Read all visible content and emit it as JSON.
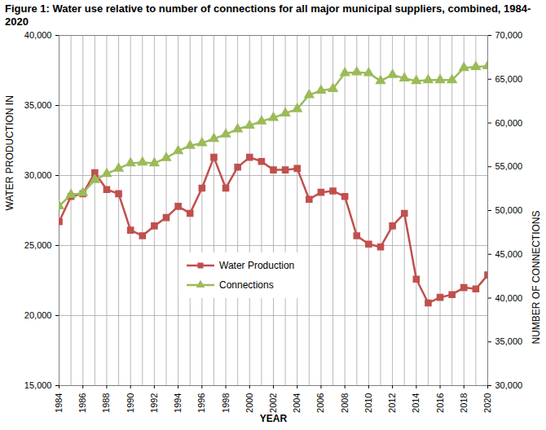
{
  "chart_data": {
    "type": "line",
    "title": "Figure 1: Water use relative to number of connections for all major municipal suppliers, combined, 1984-2020",
    "x_label": "YEAR",
    "y_label": "WATER PRODUCTION IN",
    "y2_label": "NUMBER OF CONNECTIONS",
    "x": [
      1984,
      1985,
      1986,
      1987,
      1988,
      1989,
      1990,
      1991,
      1992,
      1993,
      1994,
      1995,
      1996,
      1997,
      1998,
      1999,
      2000,
      2001,
      2002,
      2003,
      2004,
      2005,
      2006,
      2007,
      2008,
      2009,
      2010,
      2011,
      2012,
      2013,
      2014,
      2015,
      2016,
      2017,
      2018,
      2019,
      2020
    ],
    "series": [
      {
        "name": "Water Production",
        "color": "#c0504d",
        "marker": "square",
        "values": [
          26700,
          28500,
          28700,
          30200,
          29000,
          28700,
          26100,
          25700,
          26400,
          27000,
          27800,
          27300,
          29100,
          31300,
          29100,
          30600,
          31300,
          31000,
          30400,
          30400,
          30500,
          28300,
          28800,
          28900,
          28500,
          25700,
          25100,
          24900,
          26400,
          27300,
          22600,
          20900,
          21300,
          21500,
          22000,
          21900,
          22900
        ]
      },
      {
        "name": "Connections",
        "color": "#9bbb59",
        "marker": "triangle",
        "axis": "y2",
        "values": [
          50500,
          51800,
          52000,
          53500,
          54200,
          54800,
          55400,
          55500,
          55400,
          56000,
          56800,
          57400,
          57700,
          58200,
          58700,
          59300,
          59700,
          60200,
          60600,
          61100,
          61600,
          63200,
          63700,
          63900,
          65700,
          65800,
          65700,
          64800,
          65500,
          65100,
          64800,
          64900,
          64900,
          64900,
          66300,
          66400,
          66500
        ]
      }
    ],
    "xlim": [
      1984,
      2020
    ],
    "xticks": [
      1984,
      1986,
      1988,
      1990,
      1992,
      1994,
      1996,
      1998,
      2000,
      2002,
      2004,
      2006,
      2008,
      2010,
      2012,
      2014,
      2016,
      2018,
      2020
    ],
    "ylim": [
      15000,
      40000
    ],
    "yticks": [
      {
        "value": 15000,
        "label": "15,000"
      },
      {
        "value": 20000,
        "label": "20,000"
      },
      {
        "value": 25000,
        "label": "25,000"
      },
      {
        "value": 30000,
        "label": "30,000"
      },
      {
        "value": 35000,
        "label": "35,000"
      },
      {
        "value": 40000,
        "label": "40,000"
      }
    ],
    "y2lim": [
      30000,
      70000
    ],
    "y2ticks": [
      {
        "value": 30000,
        "label": "30,000"
      },
      {
        "value": 35000,
        "label": "35,000"
      },
      {
        "value": 40000,
        "label": "40,000"
      },
      {
        "value": 45000,
        "label": "45,000"
      },
      {
        "value": 50000,
        "label": "50,000"
      },
      {
        "value": 55000,
        "label": "55,000"
      },
      {
        "value": 60000,
        "label": "60,000"
      },
      {
        "value": 65000,
        "label": "65,000"
      },
      {
        "value": 70000,
        "label": "70,000"
      }
    ],
    "grid": true,
    "legend": "bottom"
  }
}
